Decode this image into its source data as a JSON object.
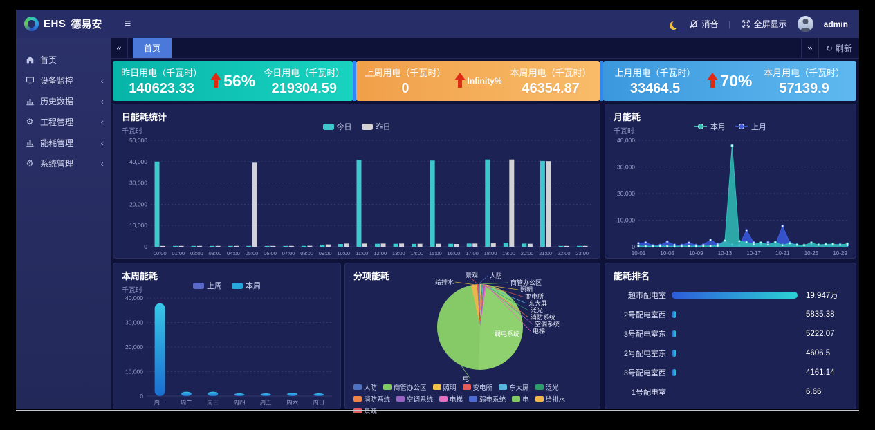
{
  "topbar": {
    "brand_ehs": "EHS",
    "brand_name": "德易安",
    "mute_label": "消音",
    "divider": "|",
    "fullscreen_label": "全屏显示",
    "username": "admin",
    "icons": [
      "hamburger-icon",
      "moon-icon",
      "bell-slash-icon",
      "expand-arrows-icon",
      "avatar"
    ]
  },
  "sidebar": {
    "items": [
      {
        "label": "首页",
        "icon": "home-icon",
        "has_children": false
      },
      {
        "label": "设备监控",
        "icon": "device-monitor-icon",
        "has_children": true
      },
      {
        "label": "历史数据",
        "icon": "bar-chart-icon",
        "has_children": true
      },
      {
        "label": "工程管理",
        "icon": "gears-icon",
        "has_children": true
      },
      {
        "label": "能耗管理",
        "icon": "bar-chart-icon",
        "has_children": true
      },
      {
        "label": "系统管理",
        "icon": "gear-icon",
        "has_children": true
      }
    ]
  },
  "tabs": {
    "active": "首页",
    "refresh_label": "刷新"
  },
  "cards": [
    {
      "left_label": "昨日用电（千瓦时）",
      "left_value": "140623.33",
      "pct": "56%",
      "right_label": "今日用电（千瓦时）",
      "right_value": "219304.59",
      "colors": [
        "#07b5a8",
        "#19d3c0"
      ]
    },
    {
      "left_label": "上周用电（千瓦时）",
      "left_value": "0",
      "pct": "Infinity%",
      "right_label": "本周用电（千瓦时）",
      "right_value": "46354.87",
      "colors": [
        "#f19f49",
        "#f8bc69"
      ]
    },
    {
      "left_label": "上月用电（千瓦时）",
      "left_value": "33464.5",
      "pct": "70%",
      "right_label": "本月用电（千瓦时）",
      "right_value": "57139.9",
      "colors": [
        "#3c98dd",
        "#5fb9f0"
      ]
    }
  ],
  "chart_data": [
    {
      "id": "daily",
      "type": "bar",
      "title": "日能耗统计",
      "unit": "千瓦时",
      "legend_position": "top",
      "grid": "dashed-horizontal",
      "categories": [
        "00:00",
        "01:00",
        "02:00",
        "03:00",
        "04:00",
        "05:00",
        "06:00",
        "07:00",
        "08:00",
        "09:00",
        "10:00",
        "11:00",
        "12:00",
        "13:00",
        "14:00",
        "15:00",
        "16:00",
        "17:00",
        "18:00",
        "19:00",
        "20:00",
        "21:00",
        "22:00",
        "23:00"
      ],
      "series": [
        {
          "name": "今日",
          "color": "#3fc8cc",
          "values": [
            40000,
            200,
            150,
            150,
            150,
            200,
            250,
            250,
            400,
            1000,
            1300,
            40800,
            1400,
            1400,
            1350,
            40500,
            1400,
            1500,
            41000,
            1800,
            1500,
            40300,
            300,
            250
          ]
        },
        {
          "name": "昨日",
          "color": "#d2d2d6",
          "values": [
            350,
            250,
            200,
            200,
            200,
            39500,
            300,
            250,
            450,
            1100,
            1500,
            1500,
            1500,
            1500,
            1400,
            1400,
            1300,
            1500,
            1600,
            41000,
            1400,
            40200,
            350,
            300
          ]
        }
      ],
      "ylim": [
        0,
        50000
      ],
      "yticks": [
        0,
        10000,
        20000,
        30000,
        40000,
        50000
      ]
    },
    {
      "id": "monthly",
      "type": "area",
      "title": "月能耗",
      "unit": "千瓦时",
      "legend_position": "top",
      "grid": "dashed-horizontal",
      "xticks_every": 4,
      "x": [
        "10-01",
        "10-02",
        "10-03",
        "10-04",
        "10-05",
        "10-06",
        "10-07",
        "10-08",
        "10-09",
        "10-10",
        "10-11",
        "10-12",
        "10-13",
        "10-14",
        "10-15",
        "10-16",
        "10-17",
        "10-18",
        "10-19",
        "10-20",
        "10-21",
        "10-22",
        "10-23",
        "10-24",
        "10-25",
        "10-26",
        "10-27",
        "10-28",
        "10-29",
        "10-30"
      ],
      "series": [
        {
          "name": "本月",
          "color": "#2fbdb5",
          "values": [
            250,
            200,
            230,
            260,
            240,
            210,
            230,
            260,
            240,
            260,
            300,
            350,
            2300,
            38000,
            2100,
            1700,
            900,
            1500,
            800,
            1700,
            600,
            1300,
            700,
            600,
            1500,
            700,
            900,
            1000,
            700,
            1100
          ]
        },
        {
          "name": "上月",
          "color": "#3b5ae0",
          "values": [
            1300,
            1600,
            500,
            600,
            1900,
            700,
            600,
            1500,
            600,
            700,
            2600,
            900,
            2100,
            800,
            600,
            6200,
            1600,
            700,
            1700,
            600,
            7800,
            1600,
            700,
            600,
            900,
            700,
            800,
            600,
            900,
            500
          ]
        }
      ],
      "ylim": [
        0,
        40000
      ],
      "yticks": [
        0,
        10000,
        20000,
        30000,
        40000
      ]
    },
    {
      "id": "weekly",
      "type": "bar",
      "title": "本周能耗",
      "unit": "千瓦时",
      "legend_position": "top",
      "grid": "dashed-horizontal",
      "rounded_bars": true,
      "categories": [
        "周一",
        "周二",
        "周三",
        "周四",
        "周五",
        "周六",
        "周日"
      ],
      "series": [
        {
          "name": "上周",
          "color": "#5a68c8",
          "values": [
            0,
            0,
            0,
            0,
            0,
            0,
            0
          ]
        },
        {
          "name": "本周",
          "color": "#29a7dd",
          "gradient": [
            "#38c6e8",
            "#1a6ed0"
          ],
          "values": [
            37800,
            1800,
            1800,
            700,
            1000,
            1400,
            500
          ]
        }
      ],
      "ylim": [
        0,
        40000
      ],
      "yticks": [
        0,
        10000,
        20000,
        30000,
        40000
      ]
    },
    {
      "id": "pie",
      "type": "pie",
      "title": "分项能耗",
      "start_angle_deg": -12,
      "values_are": "percent_estimate",
      "slices": [
        {
          "name": "给排水",
          "value": 2.2,
          "color": "#e9b64b"
        },
        {
          "name": "景观",
          "value": 0.4,
          "color": "#e45c5c"
        },
        {
          "name": "人防",
          "value": 0.55,
          "color": "#4c71c0"
        },
        {
          "name": "商管办公区",
          "value": 0.22,
          "color": "#7ecb62"
        },
        {
          "name": "照明",
          "value": 0.22,
          "color": "#f0c24a"
        },
        {
          "name": "变电所",
          "value": 0.22,
          "color": "#d8514f"
        },
        {
          "name": "东大屏",
          "value": 0.22,
          "color": "#58b5e0"
        },
        {
          "name": "泛光",
          "value": 0.22,
          "color": "#2e9e68"
        },
        {
          "name": "消防系统",
          "value": 0.28,
          "color": "#f08243"
        },
        {
          "name": "空调系统",
          "value": 0.7,
          "color": "#9a62c2"
        },
        {
          "name": "电梯",
          "value": 0.42,
          "color": "#e86fc0"
        },
        {
          "name": "弱电系统",
          "value": 48.2,
          "color": "#8ed16e",
          "label_inside": true
        },
        {
          "name": "电",
          "value": 46.15,
          "color": "#85ca66"
        }
      ],
      "legend": [
        {
          "name": "人防",
          "color": "#4c71c0"
        },
        {
          "name": "商管办公区",
          "color": "#7ecb62"
        },
        {
          "name": "照明",
          "color": "#f0c24a"
        },
        {
          "name": "变电所",
          "color": "#e45c5c"
        },
        {
          "name": "东大屏",
          "color": "#58b5e0"
        },
        {
          "name": "泛光",
          "color": "#2e9e68"
        },
        {
          "name": "消防系统",
          "color": "#f08243"
        },
        {
          "name": "空调系统",
          "color": "#9a62c2"
        },
        {
          "name": "电梯",
          "color": "#e86fc0"
        },
        {
          "name": "弱电系统",
          "color": "#4a6cd4"
        },
        {
          "name": "电",
          "color": "#7ecb62"
        },
        {
          "name": "给排水",
          "color": "#f0b84a"
        },
        {
          "name": "景观",
          "color": "#e45c5c"
        }
      ]
    },
    {
      "id": "ranking",
      "type": "bar",
      "orientation": "horizontal",
      "title": "能耗排名",
      "bar_colors": [
        "#2d5bdb",
        "#2bd3d3"
      ],
      "items": [
        {
          "name": "超市配电室",
          "value": "19.947万",
          "pct": 100
        },
        {
          "name": "2号配电室西",
          "value": "5835.38",
          "pct": 3
        },
        {
          "name": "3号配电室东",
          "value": "5222.07",
          "pct": 2.7
        },
        {
          "name": "2号配电室东",
          "value": "4606.5",
          "pct": 2.4
        },
        {
          "name": "3号配电室西",
          "value": "4161.14",
          "pct": 2.2
        },
        {
          "name": "1号配电室",
          "value": "6.66",
          "pct": 0
        }
      ]
    }
  ]
}
